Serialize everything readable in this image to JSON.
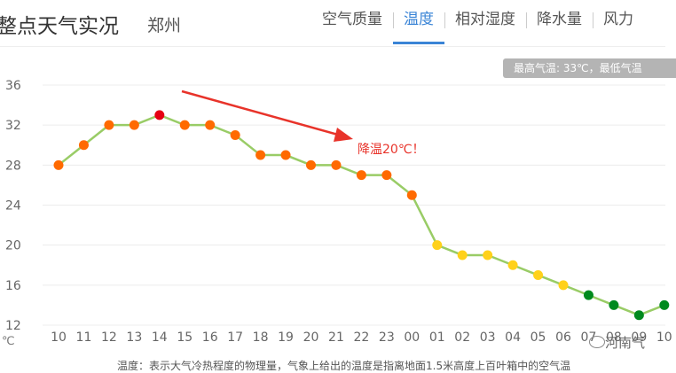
{
  "header": {
    "title": "整点天气实况",
    "city": "郑州",
    "tabs": [
      {
        "label": "空气质量",
        "active": false
      },
      {
        "label": "温度",
        "active": true
      },
      {
        "label": "相对湿度",
        "active": false
      },
      {
        "label": "降水量",
        "active": false
      },
      {
        "label": "风力",
        "active": false
      }
    ]
  },
  "summary": "最高气温: 33℃，最低气温",
  "annotation": "降温20℃！",
  "footnote": "温度：表示大气冷热程度的物理量，气象上给出的温度是指离地面1.5米高度上百叶箱中的空气温",
  "watermark": "河南气",
  "colors": {
    "line": "#99cc66",
    "hot": "#e60012",
    "warm": "#ff6a00",
    "mild": "#ffd11a",
    "cool": "#008a1e",
    "arrow": "#e8332a",
    "tab_active": "#3a84d6"
  },
  "chart_data": {
    "type": "line",
    "x": [
      "10",
      "11",
      "12",
      "13",
      "14",
      "15",
      "16",
      "17",
      "18",
      "19",
      "20",
      "21",
      "22",
      "23",
      "00",
      "01",
      "02",
      "03",
      "04",
      "05",
      "06",
      "07",
      "08",
      "09",
      "10"
    ],
    "values": [
      28,
      30,
      32,
      32,
      33,
      32,
      32,
      31,
      29,
      29,
      28,
      28,
      27,
      27,
      25,
      20,
      19,
      19,
      18,
      17,
      16,
      15,
      14,
      13,
      14
    ],
    "yticks": [
      12,
      16,
      20,
      24,
      28,
      32,
      36
    ],
    "ylim": [
      12,
      36
    ],
    "yunit": "℃",
    "grid": true
  }
}
